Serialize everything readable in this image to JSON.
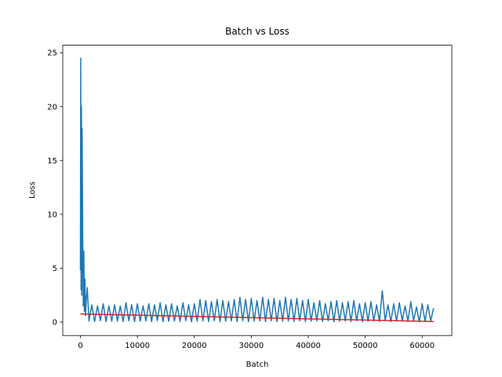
{
  "chart_data": {
    "type": "line",
    "title": "Batch vs Loss",
    "x_label": "Batch",
    "y_label": "Loss",
    "xlim": [
      -3100,
      65200
    ],
    "ylim": [
      -1.25,
      25.7
    ],
    "xticks": [
      0,
      10000,
      20000,
      30000,
      40000,
      50000,
      60000
    ],
    "yticks": [
      0,
      5,
      10,
      15,
      20,
      25
    ],
    "grid": false,
    "series": [
      {
        "color": "#1f77b4",
        "x": [
          0,
          60,
          120,
          180,
          240,
          300,
          400,
          500,
          600,
          700,
          800,
          900,
          1000,
          1200,
          1500,
          2000,
          2500,
          3000,
          3500,
          4000,
          4500,
          5000,
          5500,
          6000,
          6500,
          7000,
          7500,
          8000,
          8500,
          9000,
          9500,
          10000,
          10500,
          11000,
          11500,
          12000,
          12500,
          13000,
          13500,
          14000,
          14500,
          15000,
          15500,
          16000,
          16500,
          17000,
          17500,
          18000,
          18500,
          19000,
          19500,
          20000,
          20500,
          21000,
          21500,
          22000,
          22500,
          23000,
          23500,
          24000,
          24500,
          25000,
          25500,
          26000,
          26500,
          27000,
          27500,
          28000,
          28500,
          29000,
          29500,
          30000,
          30500,
          31000,
          31500,
          32000,
          32500,
          33000,
          33500,
          34000,
          34500,
          35000,
          35500,
          36000,
          36500,
          37000,
          37500,
          38000,
          38500,
          39000,
          39500,
          40000,
          40500,
          41000,
          41500,
          42000,
          42500,
          43000,
          43500,
          44000,
          44500,
          45000,
          45500,
          46000,
          46500,
          47000,
          47500,
          48000,
          48500,
          49000,
          49500,
          50000,
          50500,
          51000,
          51500,
          52000,
          52500,
          53000,
          53500,
          54000,
          54500,
          55000,
          55500,
          56000,
          56500,
          57000,
          57500,
          58000,
          58500,
          59000,
          59500,
          60000,
          60500,
          61000,
          61500,
          62000
        ],
        "values": [
          4.8,
          24.5,
          3,
          20,
          2.5,
          18,
          8.7,
          1.5,
          6.6,
          1.0,
          4.0,
          0.6,
          1.8,
          3.2,
          0.1,
          1.6,
          0.05,
          1.5,
          0.12,
          1.7,
          0.03,
          1.5,
          0.08,
          1.6,
          0.1,
          1.5,
          0.05,
          1.8,
          0.12,
          1.6,
          0.03,
          1.7,
          0.08,
          1.5,
          0.1,
          1.7,
          0.05,
          1.6,
          0.12,
          1.8,
          0.03,
          1.6,
          0.08,
          1.7,
          0.1,
          1.5,
          0.05,
          1.8,
          0.12,
          1.6,
          0.03,
          1.7,
          0.08,
          2.1,
          0.1,
          2.0,
          0.05,
          1.9,
          0.12,
          2.1,
          0.03,
          2.0,
          0.08,
          1.9,
          0.1,
          2.1,
          0.05,
          2.3,
          0.12,
          2.1,
          0.03,
          2.2,
          0.08,
          2.0,
          0.1,
          2.3,
          0.05,
          2.1,
          0.12,
          2.2,
          0.03,
          2.0,
          0.08,
          2.3,
          0.1,
          2.1,
          0.05,
          2.2,
          0.12,
          2.0,
          0.03,
          2.1,
          0.08,
          1.8,
          0.1,
          2.0,
          0.05,
          1.7,
          0.12,
          1.9,
          0.03,
          2.0,
          0.08,
          1.8,
          0.1,
          1.9,
          0.05,
          2.0,
          0.12,
          1.7,
          0.03,
          1.8,
          0.08,
          1.9,
          0.1,
          1.6,
          0.05,
          2.9,
          0.12,
          1.6,
          0.03,
          1.7,
          0.08,
          1.8,
          0.1,
          1.5,
          0.05,
          1.9,
          0.12,
          1.4,
          0.03,
          1.7,
          0.08,
          1.6,
          0.1,
          1.3
        ]
      },
      {
        "color": "#d62728",
        "x": [
          0,
          62000
        ],
        "values": [
          0.75,
          0.05
        ]
      }
    ]
  }
}
